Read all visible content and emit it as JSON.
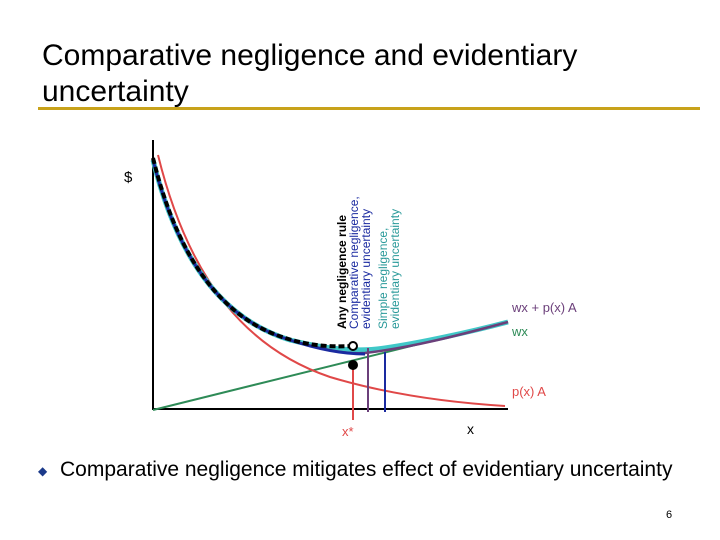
{
  "slide": {
    "title": "Comparative negligence and evidentiary uncertainty",
    "bullet": "Comparative negligence mitigates effect of evidentiary uncertainty",
    "page_number": "6"
  },
  "diagram": {
    "y_axis_label": "$",
    "x_axis_label": "x",
    "x_star_label": "x*",
    "legend_lines": [
      "Any negligence rule",
      "Comparative negligence,",
      "evidentiary uncertainty",
      "Simple negligence,",
      "evidentiary uncertainty"
    ],
    "curve_labels": {
      "total_cost": "wx + p(x) A",
      "precaution_cost": "wx",
      "expected_accident_cost": "p(x) A"
    },
    "colors": {
      "axis": "#000000",
      "precaution_cost": "#2e8b57",
      "expected_accident_cost": "#e04848",
      "total_cost": "#6b3f7a",
      "comparative_negligence": "#1a2aa0",
      "simple_negligence": "#40c8c8",
      "any_negligence_rule": "#000000",
      "title_rule": "#c8a21a"
    }
  }
}
